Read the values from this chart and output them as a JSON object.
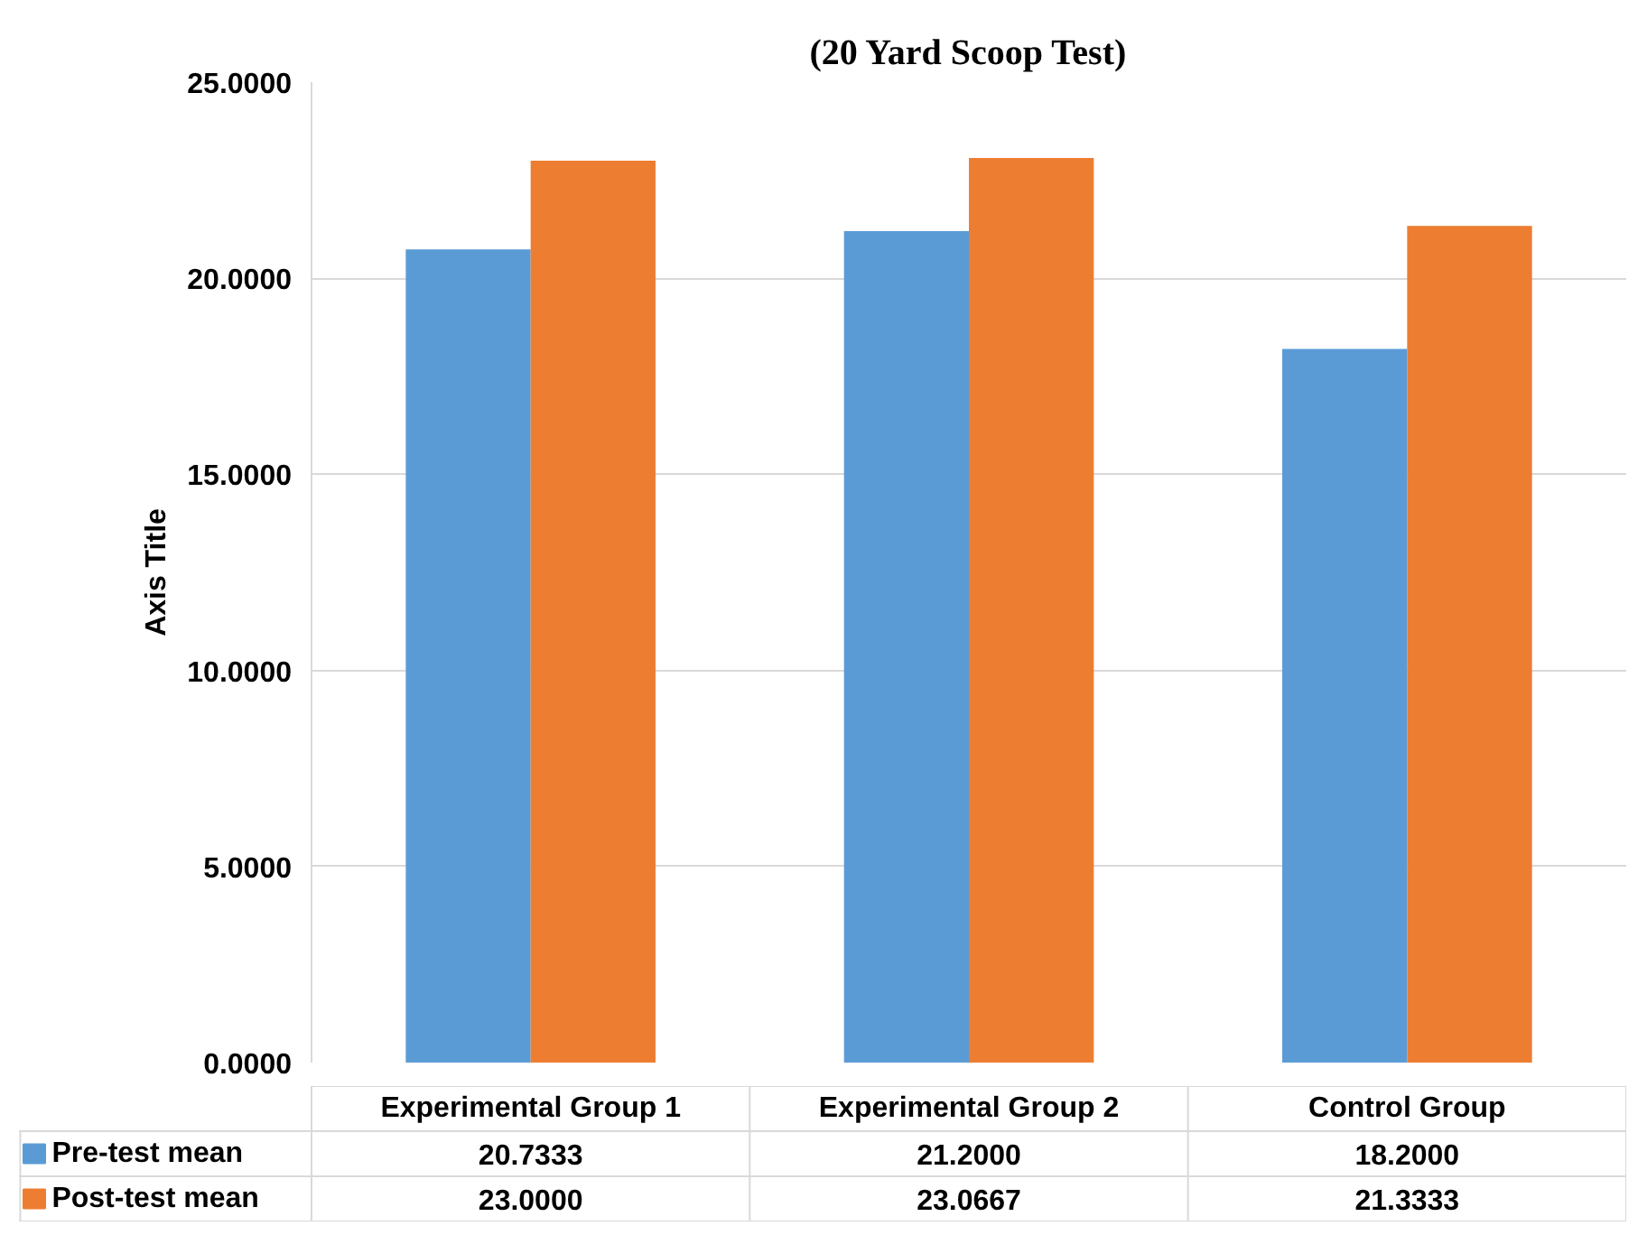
{
  "chart_data": {
    "type": "bar",
    "title": "(20 Yard Scoop Test)",
    "ylabel": "Axis Title",
    "categories": [
      "Experimental Group 1",
      "Experimental Group 2",
      "Control Group"
    ],
    "series": [
      {
        "name": "Pre-test mean",
        "color": "#5b9bd5",
        "values": [
          20.7333,
          21.2,
          18.2
        ],
        "value_labels": [
          "20.7333",
          "21.2000",
          "18.2000"
        ]
      },
      {
        "name": "Post-test mean",
        "color": "#ed7d31",
        "values": [
          23.0,
          23.0667,
          21.3333
        ],
        "value_labels": [
          "23.0000",
          "23.0667",
          "21.3333"
        ]
      }
    ],
    "ylim": [
      0,
      25
    ],
    "yticks": [
      {
        "value": 0,
        "label": "0.0000"
      },
      {
        "value": 5,
        "label": "5.0000"
      },
      {
        "value": 10,
        "label": "10.0000"
      },
      {
        "value": 15,
        "label": "15.0000"
      },
      {
        "value": 20,
        "label": "20.0000"
      },
      {
        "value": 25,
        "label": "25.0000"
      }
    ],
    "grid": "y",
    "legend": "bottom"
  }
}
